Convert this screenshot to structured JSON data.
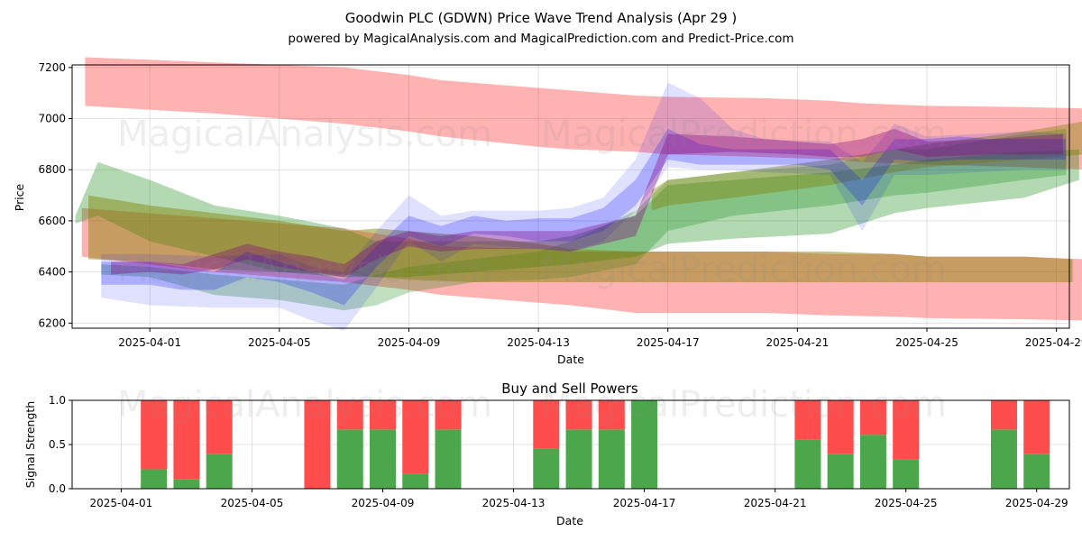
{
  "page": {
    "title": "Goodwin PLC (GDWN) Price Wave Trend Analysis (Apr 29 )",
    "subtitle": "powered by MagicalAnalysis.com and MagicalPrediction.com and Predict-Price.com",
    "watermarks": [
      "MagicalAnalysis.com",
      "MagicalPrediction.com"
    ]
  },
  "chart_data": [
    {
      "type": "area",
      "title": "",
      "xlabel": "Date",
      "ylabel": "Price",
      "ylim": [
        6180,
        7210
      ],
      "xlim": [
        -1.4,
        29.4
      ],
      "x_origin": "2025-03-31",
      "x_tick_positions": [
        1,
        5,
        9,
        13,
        17,
        21,
        25,
        29
      ],
      "x_tick_labels": [
        "2025-04-01",
        "2025-04-05",
        "2025-04-09",
        "2025-04-13",
        "2025-04-17",
        "2025-04-21",
        "2025-04-25",
        "2025-04-29"
      ],
      "y_ticks": [
        6200,
        6400,
        6600,
        6800,
        7000,
        7200
      ],
      "grid": true,
      "series": [
        {
          "name": "Upper red band",
          "color": "#ff0000",
          "opacity": 0.3,
          "x": [
            -1,
            3,
            7,
            9,
            10,
            13,
            14,
            16,
            17,
            20,
            22,
            23,
            25,
            28,
            29.9
          ],
          "upper": [
            7240,
            7220,
            7200,
            7170,
            7150,
            7120,
            7110,
            7090,
            7085,
            7080,
            7070,
            7060,
            7050,
            7045,
            7040
          ],
          "lower": [
            7050,
            7020,
            6980,
            6950,
            6930,
            6890,
            6880,
            6870,
            6860,
            6850,
            6840,
            6830,
            6820,
            6810,
            6800
          ]
        },
        {
          "name": "Lower red band",
          "color": "#ff0000",
          "opacity": 0.3,
          "x": [
            -1.1,
            3,
            7,
            9,
            10,
            13,
            14,
            16,
            17,
            20,
            22,
            24,
            25,
            28,
            29.9
          ],
          "upper": [
            6650,
            6610,
            6570,
            6530,
            6500,
            6490,
            6480,
            6480,
            6480,
            6480,
            6470,
            6470,
            6460,
            6460,
            6450
          ],
          "lower": [
            6460,
            6400,
            6360,
            6330,
            6310,
            6280,
            6270,
            6240,
            6240,
            6240,
            6230,
            6225,
            6220,
            6215,
            6210
          ]
        },
        {
          "name": "Green wave 1",
          "color": "#008000",
          "opacity": 0.3,
          "x": [
            -1.3,
            -0.6,
            1,
            3,
            5,
            7,
            8,
            9,
            11,
            13,
            14,
            16,
            17,
            19,
            22,
            24,
            25,
            28,
            29.7
          ],
          "upper": [
            6620,
            6830,
            6760,
            6660,
            6620,
            6570,
            6520,
            6520,
            6520,
            6520,
            6540,
            6620,
            6740,
            6760,
            6790,
            6820,
            6840,
            6870,
            6880
          ],
          "lower": [
            6590,
            6620,
            6520,
            6460,
            6400,
            6380,
            6380,
            6380,
            6400,
            6420,
            6430,
            6460,
            6510,
            6530,
            6550,
            6630,
            6650,
            6690,
            6760
          ]
        },
        {
          "name": "Green wave 2",
          "color": "#008000",
          "opacity": 0.25,
          "x": [
            -0.5,
            1,
            3,
            5,
            7,
            8,
            9,
            11,
            13,
            14,
            16,
            17,
            19,
            22,
            24,
            25,
            28,
            29.3
          ],
          "upper": [
            6430,
            6420,
            6390,
            6370,
            6350,
            6390,
            6420,
            6450,
            6480,
            6520,
            6640,
            6760,
            6790,
            6820,
            6880,
            6880,
            6940,
            6960
          ],
          "lower": [
            6390,
            6380,
            6310,
            6290,
            6250,
            6270,
            6320,
            6360,
            6370,
            6380,
            6430,
            6560,
            6620,
            6660,
            6700,
            6710,
            6760,
            6780
          ]
        },
        {
          "name": "Olive wave",
          "color": "#808000",
          "opacity": 0.45,
          "x": [
            -0.9,
            1,
            3,
            5,
            7,
            8,
            9,
            11,
            13,
            14,
            16,
            17,
            19,
            22,
            24,
            25,
            28,
            29.5
          ],
          "upper": [
            6700,
            6660,
            6630,
            6600,
            6560,
            6570,
            6560,
            6540,
            6510,
            6490,
            6480,
            6480,
            6480,
            6480,
            6470,
            6460,
            6460,
            6450
          ],
          "lower": [
            6450,
            6440,
            6410,
            6400,
            6390,
            6380,
            6370,
            6360,
            6360,
            6360,
            6360,
            6360,
            6360,
            6360,
            6360,
            6360,
            6360,
            6360
          ]
        },
        {
          "name": "Olive wave 2",
          "color": "#808000",
          "opacity": 0.4,
          "x": [
            16.5,
            17,
            19,
            22,
            24,
            25,
            28,
            29.9
          ],
          "upper": [
            6720,
            6760,
            6790,
            6840,
            6880,
            6900,
            6950,
            6990
          ],
          "lower": [
            6640,
            6660,
            6690,
            6740,
            6790,
            6810,
            6840,
            6860
          ]
        },
        {
          "name": "Blue wave",
          "color": "#0000ff",
          "opacity": 0.22,
          "x": [
            -0.5,
            1,
            2,
            3,
            4,
            5,
            6,
            7,
            8,
            9,
            10,
            11,
            12,
            13,
            14,
            15,
            16,
            17,
            18,
            19,
            20,
            21,
            22,
            23,
            24,
            25,
            26,
            27,
            28,
            29.3
          ],
          "upper": [
            6440,
            6440,
            6420,
            6400,
            6480,
            6440,
            6400,
            6370,
            6500,
            6620,
            6580,
            6620,
            6600,
            6610,
            6610,
            6650,
            6760,
            6960,
            6900,
            6880,
            6880,
            6880,
            6880,
            6760,
            6920,
            6920,
            6930,
            6920,
            6920,
            6920
          ],
          "lower": [
            6350,
            6350,
            6330,
            6330,
            6380,
            6360,
            6320,
            6270,
            6420,
            6540,
            6500,
            6550,
            6540,
            6520,
            6520,
            6560,
            6660,
            6840,
            6820,
            6820,
            6820,
            6820,
            6800,
            6660,
            6840,
            6830,
            6840,
            6840,
            6840,
            6840
          ]
        },
        {
          "name": "Blue wave 2",
          "color": "#0000ff",
          "opacity": 0.12,
          "x": [
            -0.5,
            1,
            3,
            5,
            6,
            7,
            8,
            9,
            10,
            11,
            13,
            14,
            15,
            16,
            17,
            18,
            19,
            20,
            22,
            23,
            24,
            25,
            28,
            29.3
          ],
          "upper": [
            6470,
            6470,
            6460,
            6470,
            6420,
            6400,
            6560,
            6700,
            6620,
            6640,
            6640,
            6650,
            6690,
            6840,
            7140,
            7080,
            6960,
            6920,
            6910,
            6830,
            6980,
            6930,
            6950,
            6940
          ],
          "lower": [
            6300,
            6270,
            6260,
            6260,
            6210,
            6170,
            6340,
            6520,
            6440,
            6510,
            6490,
            6480,
            6520,
            6640,
            6810,
            6800,
            6800,
            6790,
            6780,
            6560,
            6780,
            6780,
            6800,
            6800
          ]
        },
        {
          "name": "Purple wave",
          "color": "#800080",
          "opacity": 0.35,
          "x": [
            -0.2,
            1,
            2,
            3,
            4,
            5,
            6,
            7,
            8,
            9,
            10,
            11,
            13,
            14,
            16,
            17,
            19,
            21,
            22,
            23,
            24,
            25,
            27,
            29.2
          ],
          "upper": [
            6440,
            6440,
            6430,
            6470,
            6510,
            6480,
            6460,
            6430,
            6520,
            6560,
            6540,
            6560,
            6560,
            6560,
            6620,
            6940,
            6930,
            6910,
            6900,
            6920,
            6960,
            6910,
            6920,
            6940
          ],
          "lower": [
            6390,
            6400,
            6390,
            6410,
            6450,
            6420,
            6400,
            6380,
            6450,
            6500,
            6480,
            6490,
            6490,
            6480,
            6540,
            6860,
            6870,
            6860,
            6850,
            6850,
            6880,
            6850,
            6860,
            6860
          ]
        }
      ]
    },
    {
      "type": "bar",
      "title": "Buy and Sell Powers",
      "xlabel": "Date",
      "ylabel": "Signal Strength",
      "ylim": [
        0,
        1
      ],
      "xlim": [
        -0.5,
        30.0
      ],
      "x_origin": "2025-03-31",
      "x_tick_positions": [
        1,
        5,
        9,
        13,
        17,
        21,
        25,
        29
      ],
      "x_tick_labels": [
        "2025-04-01",
        "2025-04-05",
        "2025-04-09",
        "2025-04-13",
        "2025-04-17",
        "2025-04-21",
        "2025-04-25",
        "2025-04-29"
      ],
      "y_ticks": [
        0.0,
        0.5,
        1.0
      ],
      "y_tick_labels": [
        "0.0",
        "0.5",
        "1.0"
      ],
      "grid": true,
      "series": [
        {
          "name": "Buy",
          "color": "#4ca64c"
        },
        {
          "name": "Sell",
          "color": "#ff4c4c"
        }
      ],
      "days": [
        2,
        3,
        4,
        7,
        8,
        9,
        10,
        11,
        14,
        15,
        16,
        17,
        22,
        23,
        24,
        25,
        28,
        29
      ],
      "buy": [
        0.22,
        0.11,
        0.39,
        0.0,
        0.67,
        0.67,
        0.17,
        0.67,
        0.45,
        0.67,
        0.67,
        1.0,
        0.56,
        0.39,
        0.61,
        0.33,
        0.67,
        0.39
      ]
    }
  ]
}
